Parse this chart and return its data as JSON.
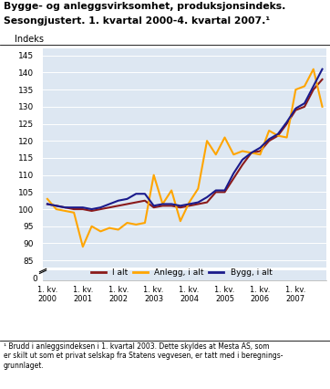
{
  "title_line1": "Bygge- og anleggsvirksomhet, produksjonsindeks.",
  "title_line2": "Sesongjustert. 1. kvartal 2000-4. kvartal 2007.¹",
  "ylabel": "Indeks",
  "footnote": "¹ Brudd i anleggsindeksen i 1. kvartal 2003. Dette skyldes at Mesta AS, som\ner skilt ut som et privat selskap fra Statens vegvesen, er tatt med i beregnings-\ngrunnlaget.",
  "yticks_top": [
    85,
    90,
    95,
    100,
    105,
    110,
    115,
    120,
    125,
    130,
    135,
    140,
    145
  ],
  "ylim_top_lo": 0,
  "ylim_top_hi": 2,
  "ylim_main_lo": 83,
  "ylim_main_hi": 147,
  "series": {
    "i_alt": {
      "label": "I alt",
      "color": "#8B1A1A",
      "linewidth": 1.5,
      "values": [
        101.5,
        101.0,
        100.5,
        100.0,
        100.0,
        99.5,
        100.0,
        100.5,
        101.0,
        101.5,
        102.0,
        102.5,
        100.5,
        101.0,
        101.0,
        100.5,
        101.0,
        101.5,
        102.0,
        105.0,
        105.0,
        109.0,
        113.0,
        116.5,
        117.0,
        120.0,
        121.5,
        125.0,
        129.0,
        130.0,
        135.0,
        138.0
      ]
    },
    "anlegg": {
      "label": "Anlegg, i alt",
      "color": "#FFA500",
      "linewidth": 1.5,
      "values": [
        103.0,
        100.0,
        99.5,
        99.0,
        89.0,
        95.0,
        93.5,
        94.5,
        94.0,
        96.0,
        95.5,
        96.0,
        110.0,
        101.5,
        105.5,
        96.5,
        102.0,
        106.0,
        120.0,
        116.0,
        121.0,
        116.0,
        117.0,
        116.5,
        116.0,
        123.0,
        121.5,
        121.0,
        135.0,
        136.0,
        141.0,
        130.0
      ]
    },
    "bygg": {
      "label": "Bygg, i alt",
      "color": "#1a1a8B",
      "linewidth": 1.5,
      "values": [
        101.5,
        101.0,
        100.5,
        100.5,
        100.5,
        100.0,
        100.5,
        101.5,
        102.5,
        103.0,
        104.5,
        104.5,
        101.0,
        101.5,
        101.5,
        101.0,
        101.5,
        102.0,
        103.5,
        105.5,
        105.5,
        110.5,
        114.5,
        116.5,
        118.0,
        120.5,
        122.0,
        125.5,
        129.5,
        131.0,
        136.0,
        141.0
      ]
    }
  },
  "x_tick_labels": [
    "1. kv.\n2000",
    "1. kv.\n2001",
    "1. kv.\n2002",
    "1. kv.\n2003",
    "1. kv.\n2004",
    "1. kv.\n2005",
    "1. kv.\n2006",
    "1. kv.\n2007"
  ],
  "x_tick_positions": [
    0,
    4,
    8,
    12,
    16,
    20,
    24,
    28
  ],
  "background_color": "#ffffff",
  "plot_bg_color": "#dde7f2"
}
